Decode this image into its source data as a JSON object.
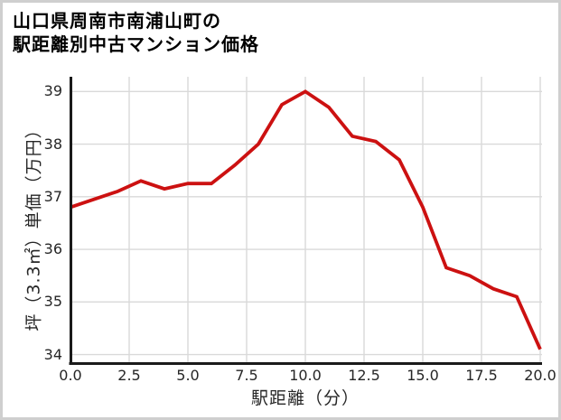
{
  "chart_data": {
    "type": "line",
    "title": "山口県周南市南浦山町の駅距離別中古マンション価格",
    "title_lines": [
      "山口県周南市南浦山町の",
      "駅距離別中古マンション価格"
    ],
    "xlabel": "駅距離（分）",
    "ylabel": "坪（3.3㎡）単価（万円）",
    "x": [
      0,
      1,
      2,
      3,
      4,
      5,
      6,
      7,
      8,
      9,
      10,
      11,
      12,
      13,
      14,
      15,
      16,
      17,
      18,
      19,
      20
    ],
    "values": [
      36.8,
      36.95,
      37.1,
      37.3,
      37.15,
      37.25,
      37.25,
      37.6,
      38.0,
      38.75,
      39.0,
      38.7,
      38.15,
      38.05,
      37.7,
      36.8,
      35.65,
      35.5,
      35.25,
      35.1,
      34.1
    ],
    "xticks": [
      "0.0",
      "2.5",
      "5.0",
      "7.5",
      "10.0",
      "12.5",
      "15.0",
      "17.5",
      "20.0"
    ],
    "xtick_values": [
      0,
      2.5,
      5,
      7.5,
      10,
      12.5,
      15,
      17.5,
      20
    ],
    "yticks": [
      "34",
      "35",
      "36",
      "37",
      "38",
      "39"
    ],
    "ytick_values": [
      34,
      35,
      36,
      37,
      38,
      39
    ],
    "xlim": [
      0,
      20
    ],
    "ylim": [
      33.82,
      39.28
    ],
    "grid": true,
    "legend": "none",
    "marker": "none",
    "line_color": "#cc1111",
    "grid_color": "#d9d9d9",
    "axis_color": "#1a1a1a",
    "tick_text_color": "#262626",
    "title_color": "#000000",
    "background_color": "#ffffff",
    "border_color": "#cfcfcf"
  }
}
